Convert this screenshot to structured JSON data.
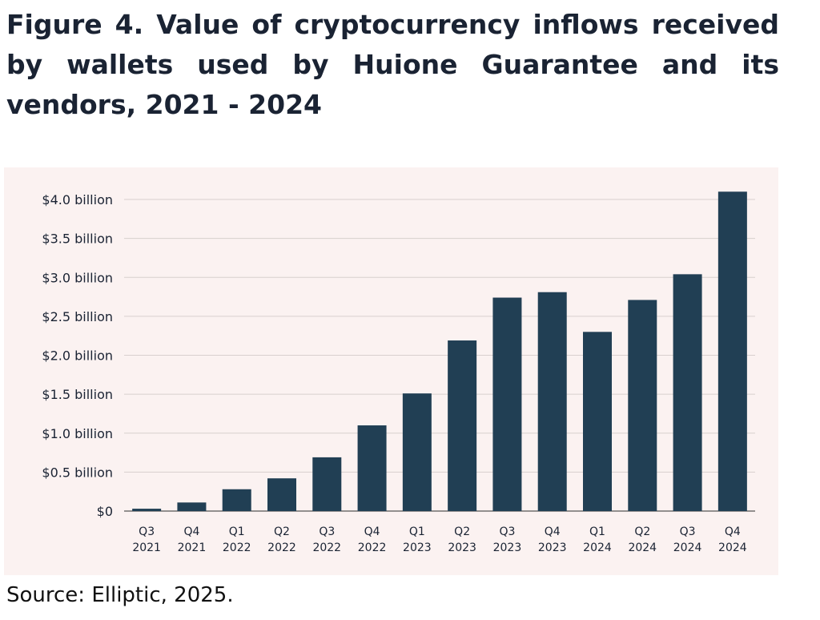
{
  "title": "Figure 4. Value of cryptocurrency inflows received by wallets used by Huione Guarantee and its vendors, 2021 - 2024",
  "source": "Source: Elliptic, 2025.",
  "colors": {
    "bar": "#213f54",
    "grid": "#d8d0ce",
    "panel": "#fbf2f1",
    "text": "#1a2333"
  },
  "chart_data": {
    "type": "bar",
    "title": "Figure 4. Value of cryptocurrency inflows received by wallets used by Huione Guarantee and its vendors, 2021 - 2024",
    "xlabel": "",
    "ylabel": "",
    "categories": [
      [
        "Q3",
        "2021"
      ],
      [
        "Q4",
        "2021"
      ],
      [
        "Q1",
        "2022"
      ],
      [
        "Q2",
        "2022"
      ],
      [
        "Q3",
        "2022"
      ],
      [
        "Q4",
        "2022"
      ],
      [
        "Q1",
        "2023"
      ],
      [
        "Q2",
        "2023"
      ],
      [
        "Q3",
        "2023"
      ],
      [
        "Q4",
        "2023"
      ],
      [
        "Q1",
        "2024"
      ],
      [
        "Q2",
        "2024"
      ],
      [
        "Q3",
        "2024"
      ],
      [
        "Q4",
        "2024"
      ]
    ],
    "values": [
      0.03,
      0.11,
      0.28,
      0.42,
      0.69,
      1.1,
      1.51,
      2.19,
      2.74,
      2.81,
      2.3,
      2.71,
      3.04,
      4.1
    ],
    "unit": "USD billion",
    "ylim": [
      0,
      4.0
    ],
    "yticks": [
      {
        "value": 4.0,
        "label": "$4.0 billion"
      },
      {
        "value": 3.5,
        "label": "$3.5 billion"
      },
      {
        "value": 3.0,
        "label": "$3.0 billion"
      },
      {
        "value": 2.5,
        "label": "$2.5 billion"
      },
      {
        "value": 2.0,
        "label": "$2.0 billion"
      },
      {
        "value": 1.5,
        "label": "$1.5 billion"
      },
      {
        "value": 1.0,
        "label": "$1.0 billion"
      },
      {
        "value": 0.5,
        "label": "$0.5 billion"
      },
      {
        "value": 0,
        "label": "$0"
      }
    ],
    "grid": true,
    "legend": "none"
  }
}
